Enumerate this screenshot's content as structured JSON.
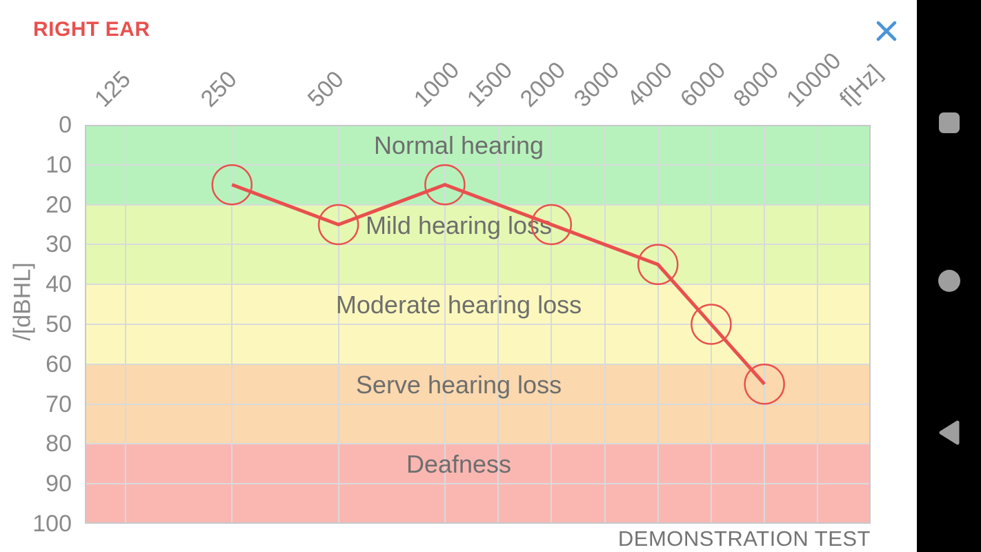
{
  "header": {
    "title": "RIGHT EAR",
    "title_color": "#e8504e",
    "close_icon": "x-close",
    "close_icon_color": "#4b94d8"
  },
  "chart_data": {
    "type": "line",
    "description": "Audiogram of right ear hearing thresholds over colored severity zones",
    "x_axis": {
      "label": "f[Hz]",
      "ticks": [
        "125",
        "250",
        "500",
        "1000",
        "1500",
        "2000",
        "3000",
        "4000",
        "6000",
        "8000",
        "10000"
      ],
      "scale": "octave-log style, octaves equal width up to 1000 then equal label spacing"
    },
    "y_axis": {
      "label": "/[dBHL]",
      "ticks": [
        "0",
        "10",
        "20",
        "30",
        "40",
        "50",
        "60",
        "70",
        "80",
        "90",
        "100"
      ],
      "range": [
        0,
        100
      ],
      "direction": "down"
    },
    "grid": true,
    "zones": [
      {
        "label": "Normal hearing",
        "range": [
          0,
          20
        ],
        "color": "#b7f2bd"
      },
      {
        "label": "Mild hearing loss",
        "range": [
          20,
          40
        ],
        "color": "#e4f8b2"
      },
      {
        "label": "Moderate hearing loss",
        "range": [
          40,
          60
        ],
        "color": "#fcf8bd"
      },
      {
        "label": "Serve hearing loss",
        "range": [
          60,
          80
        ],
        "color": "#fbd8ae"
      },
      {
        "label": "Deafness",
        "range": [
          80,
          100
        ],
        "color": "#fab7b2"
      }
    ],
    "series": [
      {
        "name": "right-ear-thresholds",
        "color": "#e8504e",
        "marker": "open-circle",
        "points": [
          {
            "freq": 250,
            "db": 15
          },
          {
            "freq": 500,
            "db": 25
          },
          {
            "freq": 1000,
            "db": 15
          },
          {
            "freq": 2000,
            "db": 25
          },
          {
            "freq": 4000,
            "db": 35
          },
          {
            "freq": 6000,
            "db": 50
          },
          {
            "freq": 8000,
            "db": 65
          }
        ]
      }
    ],
    "footnote": "DEMONSTRATION TEST"
  },
  "nav_bar": {
    "background": "#000000",
    "icon_color": "#9e9e9e",
    "buttons": [
      "recents",
      "home",
      "back"
    ]
  }
}
